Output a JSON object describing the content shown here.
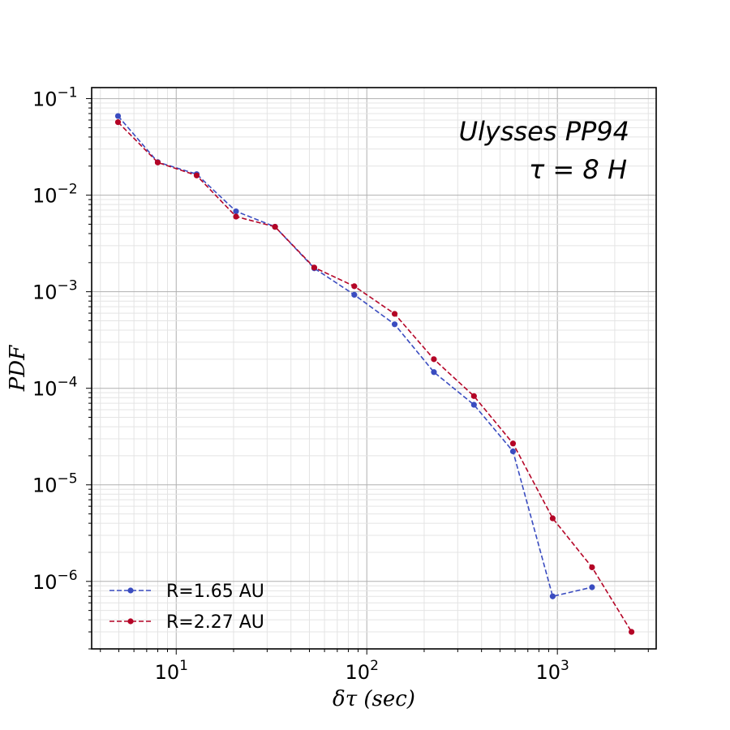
{
  "chart_data": {
    "type": "line",
    "xscale": "log",
    "yscale": "log",
    "xlim": [
      3.6,
      3300
    ],
    "ylim": [
      2e-07,
      0.13
    ],
    "grid": true,
    "xlabel": "δτ (sec)",
    "ylabel": "PDF",
    "annotations": [
      "Ulysses PP94",
      "τ   = 8 H"
    ],
    "legend_position": "lower-left",
    "xticks": [
      {
        "base": "10",
        "exp": "1",
        "value": 10
      },
      {
        "base": "10",
        "exp": "2",
        "value": 100
      },
      {
        "base": "10",
        "exp": "3",
        "value": 1000
      }
    ],
    "yticks": [
      {
        "base": "10",
        "exp": "−1",
        "value": 0.1
      },
      {
        "base": "10",
        "exp": "−2",
        "value": 0.01
      },
      {
        "base": "10",
        "exp": "−3",
        "value": 0.001
      },
      {
        "base": "10",
        "exp": "−4",
        "value": 0.0001
      },
      {
        "base": "10",
        "exp": "−5",
        "value": 1e-05
      },
      {
        "base": "10",
        "exp": "−6",
        "value": 1e-06
      }
    ],
    "series": [
      {
        "name": "R=1.65 AU",
        "color": "#3a4cc0",
        "x": [
          4.95,
          8.0,
          12.8,
          20.6,
          33.0,
          53.0,
          86.0,
          140.0,
          225.0,
          365.0,
          585.0,
          945.0,
          1520.0
        ],
        "y": [
          0.066,
          0.022,
          0.0165,
          0.0068,
          0.0047,
          0.00175,
          0.00093,
          0.00046,
          0.000147,
          6.75e-05,
          2.22e-05,
          7e-07,
          8.7e-07
        ]
      },
      {
        "name": "R=2.27 AU",
        "color": "#b40426",
        "x": [
          4.95,
          8.0,
          12.8,
          20.6,
          33.0,
          53.0,
          86.0,
          140.0,
          225.0,
          365.0,
          585.0,
          945.0,
          1520.0,
          2450.0
        ],
        "y": [
          0.057,
          0.0218,
          0.016,
          0.006,
          0.0047,
          0.00178,
          0.00114,
          0.00059,
          0.0002,
          8.3e-05,
          2.68e-05,
          4.5e-06,
          1.4e-06,
          3e-07
        ]
      }
    ]
  }
}
